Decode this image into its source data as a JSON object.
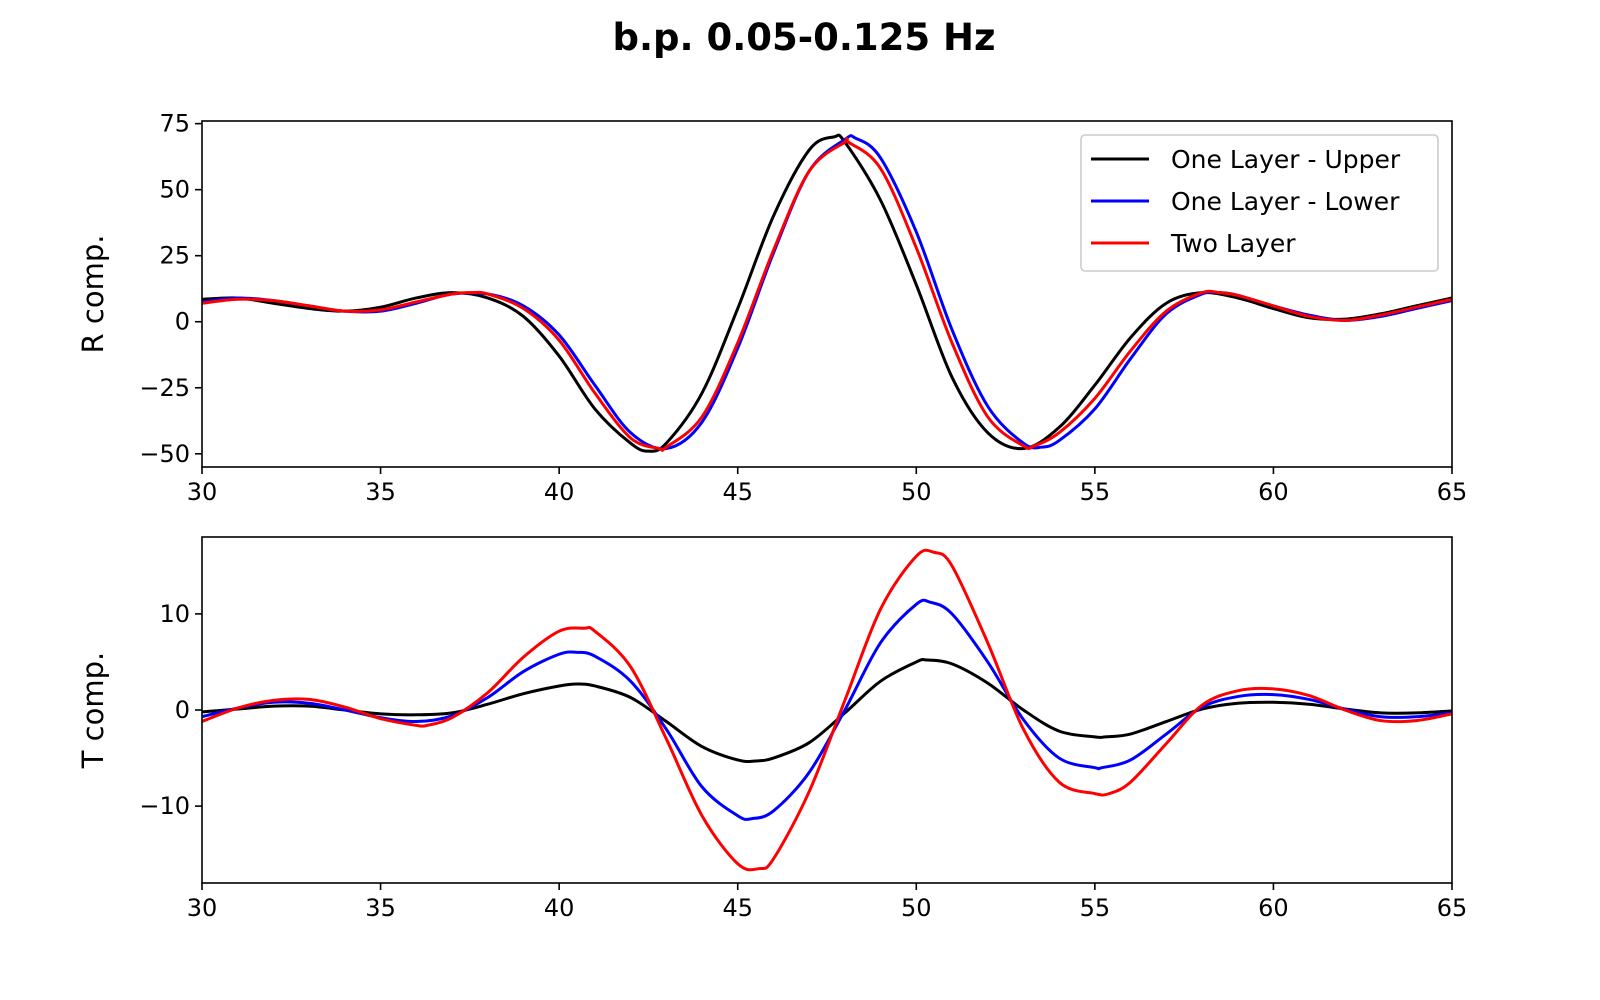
{
  "figure": {
    "title": "b.p. 0.05-0.125 Hz"
  },
  "colors": {
    "one_layer_upper": "#000000",
    "one_layer_lower": "#0000ff",
    "two_layer": "#ff0000"
  },
  "chart_data": [
    {
      "type": "line",
      "title": "",
      "xlabel": "",
      "ylabel": "R comp.",
      "xlim": [
        30,
        65
      ],
      "ylim": [
        -55,
        76
      ],
      "xticks": [
        30,
        35,
        40,
        45,
        50,
        55,
        60,
        65
      ],
      "yticks": [
        -50,
        -25,
        0,
        25,
        50,
        75
      ],
      "ytick_labels": [
        "−50",
        "−25",
        "0",
        "25",
        "50",
        "75"
      ],
      "legend": {
        "position": "upper right"
      },
      "series": [
        {
          "name": "One Layer - Upper",
          "color": "#000000",
          "x": [
            30,
            31,
            32,
            33,
            34,
            35,
            36,
            37,
            38,
            39,
            40,
            41,
            42,
            42.5,
            43,
            44,
            45,
            46,
            47,
            47.7,
            48,
            49,
            50,
            51,
            52,
            53,
            54,
            55,
            56,
            57,
            58,
            59,
            60,
            61,
            62,
            63,
            64,
            65
          ],
          "y": [
            8.5,
            9,
            7,
            5,
            4,
            5.5,
            9,
            11,
            9,
            2,
            -13,
            -33,
            -46,
            -49,
            -46,
            -27,
            5,
            40,
            65,
            70,
            68,
            46,
            14,
            -21,
            -42,
            -48,
            -40,
            -24,
            -6,
            7,
            11,
            9,
            5,
            1.5,
            1,
            3,
            6,
            9
          ]
        },
        {
          "name": "One Layer - Lower",
          "color": "#0000ff",
          "x": [
            30,
            31,
            32,
            33,
            34,
            35,
            36,
            37,
            38,
            39,
            40,
            41,
            42,
            43,
            44,
            45,
            46,
            47,
            48,
            48.3,
            49,
            50,
            51,
            52,
            53,
            53.5,
            54,
            55,
            56,
            57,
            58,
            58.5,
            59,
            60,
            61,
            62,
            63,
            64,
            65
          ],
          "y": [
            7.5,
            9,
            8,
            6,
            4,
            4,
            7,
            10.5,
            10.5,
            6,
            -5,
            -24,
            -42,
            -48,
            -38,
            -10,
            26,
            57,
            69,
            69.5,
            62,
            34,
            -3,
            -32,
            -46,
            -47.5,
            -45,
            -33,
            -14,
            3,
            10.5,
            11,
            10,
            6,
            2.5,
            0.5,
            2,
            5,
            8
          ]
        },
        {
          "name": "Two Layer",
          "color": "#ff0000",
          "x": [
            30,
            31,
            32,
            33,
            34,
            35,
            36,
            37,
            37.5,
            38,
            39,
            40,
            41,
            42,
            42.8,
            43,
            44,
            45,
            46,
            47,
            48,
            48.1,
            49,
            50,
            51,
            52,
            53,
            53.3,
            54,
            55,
            56,
            57,
            58,
            58.5,
            59,
            60,
            61,
            62,
            63,
            64,
            65
          ],
          "y": [
            7,
            8.5,
            8,
            6,
            4,
            4.5,
            7.5,
            10.5,
            11,
            10.5,
            5,
            -7,
            -27,
            -44,
            -48,
            -47.5,
            -36,
            -8,
            27,
            57,
            68,
            68,
            58,
            28,
            -8,
            -36,
            -47,
            -47,
            -42,
            -29,
            -11,
            4,
            11,
            11,
            10,
            6,
            2,
            0.5,
            2.5,
            5.5,
            8.5
          ]
        }
      ]
    },
    {
      "type": "line",
      "title": "",
      "xlabel": "",
      "ylabel": "T comp.",
      "xlim": [
        30,
        65
      ],
      "ylim": [
        -18,
        18
      ],
      "xticks": [
        30,
        35,
        40,
        45,
        50,
        55,
        60,
        65
      ],
      "yticks": [
        -10,
        0,
        10
      ],
      "ytick_labels": [
        "−10",
        "0",
        "10"
      ],
      "series": [
        {
          "name": "One Layer - Upper",
          "color": "#000000",
          "x": [
            30,
            31,
            32,
            33,
            34,
            35,
            36,
            37,
            38,
            39,
            40,
            40.5,
            41,
            42,
            43,
            44,
            45,
            45.5,
            46,
            47,
            48,
            49,
            50,
            50.3,
            51,
            52,
            53,
            54,
            55,
            55.3,
            56,
            57,
            58,
            59,
            60,
            61,
            62,
            63,
            64,
            65
          ],
          "y": [
            -0.2,
            0.1,
            0.4,
            0.4,
            0,
            -0.4,
            -0.5,
            -0.3,
            0.6,
            1.7,
            2.5,
            2.7,
            2.5,
            1.3,
            -1.2,
            -3.8,
            -5.2,
            -5.3,
            -5,
            -3.4,
            -0.3,
            3,
            5,
            5.2,
            4.8,
            2.8,
            0,
            -2.2,
            -2.8,
            -2.8,
            -2.5,
            -1.2,
            0.1,
            0.7,
            0.8,
            0.6,
            0.1,
            -0.3,
            -0.3,
            -0.1
          ]
        },
        {
          "name": "One Layer - Lower",
          "color": "#0000ff",
          "x": [
            30,
            31,
            32,
            33,
            34,
            35,
            36,
            37,
            38,
            39,
            40,
            40.5,
            41,
            42,
            43,
            44,
            45,
            45.4,
            46,
            47,
            48,
            49,
            50,
            50.4,
            51,
            52,
            53,
            54,
            55,
            55.2,
            56,
            57,
            58,
            59,
            60,
            61,
            62,
            63,
            64,
            65
          ],
          "y": [
            -0.7,
            0.2,
            0.8,
            0.7,
            0,
            -0.8,
            -1.2,
            -0.6,
            1.3,
            4,
            5.8,
            6,
            5.6,
            3,
            -2,
            -8,
            -11,
            -11.3,
            -10.5,
            -6.5,
            0,
            7,
            11,
            11.2,
            10,
            5,
            -1,
            -5,
            -6,
            -6,
            -5.2,
            -2.5,
            0.3,
            1.4,
            1.6,
            1.1,
            0.1,
            -0.7,
            -0.7,
            -0.3
          ]
        },
        {
          "name": "Two Layer",
          "color": "#ff0000",
          "x": [
            30,
            31,
            32,
            33,
            34,
            35,
            36,
            36.3,
            37,
            38,
            39,
            40,
            40.7,
            41,
            42,
            43,
            44,
            45,
            45.6,
            46,
            47,
            48,
            49,
            50,
            50.5,
            51,
            52,
            53,
            54,
            55,
            55.4,
            56,
            57,
            58,
            59,
            60,
            61,
            62,
            63,
            64,
            65
          ],
          "y": [
            -1.2,
            0.2,
            1,
            1.1,
            0.3,
            -0.9,
            -1.6,
            -1.6,
            -0.8,
            1.8,
            5.5,
            8.2,
            8.5,
            8.2,
            4.5,
            -3,
            -11,
            -16,
            -16.5,
            -15.5,
            -8.5,
            1,
            10.5,
            16,
            16.4,
            15,
            7,
            -2,
            -7.5,
            -8.7,
            -8.7,
            -7.5,
            -3.5,
            0.5,
            2,
            2.2,
            1.5,
            0,
            -1.1,
            -1.1,
            -0.4
          ]
        }
      ]
    }
  ]
}
